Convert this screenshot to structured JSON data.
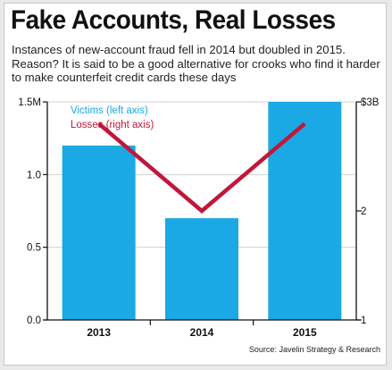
{
  "title": "Fake Accounts, Real Losses",
  "subtitle": "Instances of new-account fraud fell in 2014 but doubled in 2015. Reason? It is said to be a good alternative for crooks who find it harder to make counterfeit credit cards these days",
  "source": "Source: Javelin Strategy & Research",
  "colors": {
    "bars": "#1aa9e4",
    "line": "#c1173a",
    "axis": "#111111",
    "grid": "#d0d0d0"
  },
  "chart_data": {
    "type": "bar",
    "categories": [
      "2013",
      "2014",
      "2015"
    ],
    "series": [
      {
        "name": "Victims (left axis)",
        "type": "bar",
        "axis": "left",
        "values": [
          1.2,
          0.7,
          1.5
        ]
      },
      {
        "name": "Losses (right axis)",
        "type": "line",
        "axis": "right",
        "values": [
          2.8,
          2.0,
          2.8
        ]
      }
    ],
    "left_axis": {
      "ticks": [
        "1.5M",
        "1.0",
        "0.5",
        "0.0"
      ],
      "tick_values": [
        1.5,
        1.0,
        0.5,
        0.0
      ],
      "range": [
        0,
        1.5
      ]
    },
    "right_axis": {
      "ticks": [
        "$3B",
        "2",
        "1"
      ],
      "tick_values": [
        3,
        2,
        1
      ],
      "range": [
        1,
        3
      ]
    },
    "legend_placement": "top-left",
    "grid": true
  }
}
